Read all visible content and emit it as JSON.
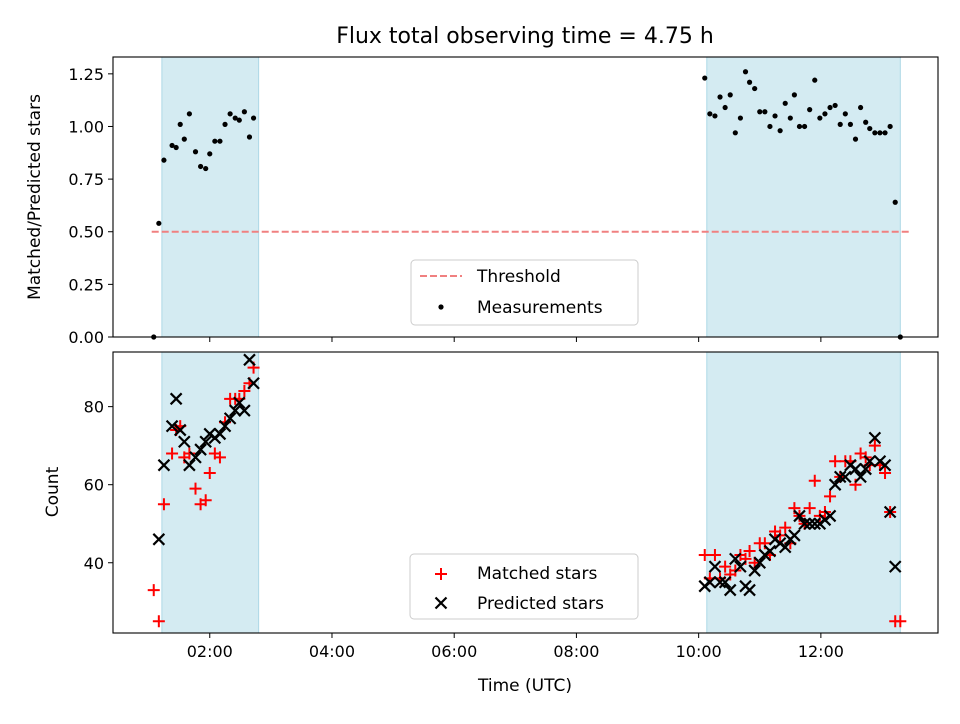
{
  "title": "Flux total observing time = 4.75 h",
  "xlabel": "Time (UTC)",
  "x_ticks": [
    "02:00",
    "04:00",
    "06:00",
    "08:00",
    "10:00",
    "12:00"
  ],
  "colors": {
    "shade": "#add8e6",
    "threshold": "#f08080",
    "measure": "#000000",
    "matched": "#ff0000",
    "predicted": "#000000"
  },
  "chart_data": [
    {
      "type": "scatter",
      "ylabel": "Matched/Predicted stars",
      "ylim": [
        0.0,
        1.33
      ],
      "y_ticks": [
        "0.00",
        "0.25",
        "0.50",
        "0.75",
        "1.00",
        "1.25"
      ],
      "xlim": [
        "00:25",
        "13:55"
      ],
      "shaded_spans": [
        [
          "01:13",
          "02:48"
        ],
        [
          "10:08",
          "13:18"
        ]
      ],
      "threshold": {
        "name": "Threshold",
        "value": 0.5,
        "x_range": [
          "01:03",
          "13:28"
        ]
      },
      "legend": {
        "placement": "lower center",
        "entries": [
          "Threshold",
          "Measurements"
        ]
      },
      "series": [
        {
          "name": "Measurements",
          "points": [
            [
              "01:05",
              0.0
            ],
            [
              "01:10",
              0.54
            ],
            [
              "01:15",
              0.84
            ],
            [
              "01:23",
              0.91
            ],
            [
              "01:27",
              0.9
            ],
            [
              "01:31",
              1.01
            ],
            [
              "01:35",
              0.94
            ],
            [
              "01:40",
              1.06
            ],
            [
              "01:46",
              0.88
            ],
            [
              "01:51",
              0.81
            ],
            [
              "01:56",
              0.8
            ],
            [
              "02:00",
              0.87
            ],
            [
              "02:05",
              0.93
            ],
            [
              "02:10",
              0.93
            ],
            [
              "02:15",
              1.01
            ],
            [
              "02:20",
              1.06
            ],
            [
              "02:25",
              1.04
            ],
            [
              "02:29",
              1.03
            ],
            [
              "02:34",
              1.07
            ],
            [
              "02:39",
              0.95
            ],
            [
              "02:43",
              1.04
            ],
            [
              "10:06",
              1.23
            ],
            [
              "10:11",
              1.06
            ],
            [
              "10:16",
              1.05
            ],
            [
              "10:21",
              1.14
            ],
            [
              "10:26",
              1.09
            ],
            [
              "10:31",
              1.15
            ],
            [
              "10:36",
              0.97
            ],
            [
              "10:41",
              1.04
            ],
            [
              "10:46",
              1.26
            ],
            [
              "10:50",
              1.21
            ],
            [
              "10:55",
              1.18
            ],
            [
              "11:00",
              1.07
            ],
            [
              "11:05",
              1.07
            ],
            [
              "11:10",
              1.0
            ],
            [
              "11:15",
              1.05
            ],
            [
              "11:20",
              0.98
            ],
            [
              "11:25",
              1.11
            ],
            [
              "11:30",
              1.04
            ],
            [
              "11:34",
              1.15
            ],
            [
              "11:39",
              1.0
            ],
            [
              "11:44",
              1.0
            ],
            [
              "11:49",
              1.08
            ],
            [
              "11:54",
              1.22
            ],
            [
              "11:59",
              1.04
            ],
            [
              "12:04",
              1.06
            ],
            [
              "12:09",
              1.09
            ],
            [
              "12:14",
              1.1
            ],
            [
              "12:19",
              1.01
            ],
            [
              "12:24",
              1.06
            ],
            [
              "12:29",
              1.01
            ],
            [
              "12:34",
              0.94
            ],
            [
              "12:39",
              1.09
            ],
            [
              "12:44",
              1.02
            ],
            [
              "12:48",
              0.99
            ],
            [
              "12:53",
              0.97
            ],
            [
              "12:58",
              0.97
            ],
            [
              "13:03",
              0.97
            ],
            [
              "13:08",
              1.0
            ],
            [
              "13:13",
              0.64
            ],
            [
              "13:18",
              0.0
            ]
          ]
        }
      ]
    },
    {
      "type": "scatter",
      "ylabel": "Count",
      "ylim": [
        22,
        94
      ],
      "y_ticks": [
        "40",
        "60",
        "80"
      ],
      "xlim": [
        "00:25",
        "13:55"
      ],
      "shaded_spans": [
        [
          "01:13",
          "02:48"
        ],
        [
          "10:08",
          "13:18"
        ]
      ],
      "legend": {
        "placement": "lower center",
        "entries": [
          "Matched stars",
          "Predicted stars"
        ]
      },
      "series": [
        {
          "name": "Matched stars",
          "points": [
            [
              "01:05",
              33
            ],
            [
              "01:10",
              25
            ],
            [
              "01:15",
              55
            ],
            [
              "01:23",
              68
            ],
            [
              "01:27",
              74
            ],
            [
              "01:31",
              75
            ],
            [
              "01:35",
              67
            ],
            [
              "01:40",
              68
            ],
            [
              "01:46",
              59
            ],
            [
              "01:51",
              55
            ],
            [
              "01:56",
              56
            ],
            [
              "02:00",
              63
            ],
            [
              "02:05",
              68
            ],
            [
              "02:10",
              67
            ],
            [
              "02:15",
              76
            ],
            [
              "02:20",
              82
            ],
            [
              "02:25",
              82
            ],
            [
              "02:29",
              82
            ],
            [
              "02:34",
              84
            ],
            [
              "02:39",
              86
            ],
            [
              "02:43",
              90
            ],
            [
              "10:06",
              42
            ],
            [
              "10:11",
              36
            ],
            [
              "10:16",
              42
            ],
            [
              "10:21",
              36
            ],
            [
              "10:26",
              39
            ],
            [
              "10:31",
              37
            ],
            [
              "10:36",
              38
            ],
            [
              "10:41",
              42
            ],
            [
              "10:46",
              41
            ],
            [
              "10:50",
              43
            ],
            [
              "10:55",
              40
            ],
            [
              "11:00",
              45
            ],
            [
              "11:05",
              45
            ],
            [
              "11:10",
              42
            ],
            [
              "11:15",
              48
            ],
            [
              "11:20",
              47
            ],
            [
              "11:25",
              49
            ],
            [
              "11:30",
              45
            ],
            [
              "11:34",
              54
            ],
            [
              "11:39",
              52
            ],
            [
              "11:44",
              50
            ],
            [
              "11:49",
              54
            ],
            [
              "11:54",
              61
            ],
            [
              "11:59",
              52
            ],
            [
              "12:04",
              53
            ],
            [
              "12:09",
              57
            ],
            [
              "12:14",
              66
            ],
            [
              "12:19",
              62
            ],
            [
              "12:24",
              66
            ],
            [
              "12:29",
              66
            ],
            [
              "12:34",
              60
            ],
            [
              "12:39",
              68
            ],
            [
              "12:44",
              67
            ],
            [
              "12:48",
              65
            ],
            [
              "12:53",
              70
            ],
            [
              "12:58",
              65
            ],
            [
              "13:03",
              63
            ],
            [
              "13:08",
              53
            ],
            [
              "13:13",
              25
            ],
            [
              "13:18",
              25
            ]
          ]
        },
        {
          "name": "Predicted stars",
          "points": [
            [
              "01:10",
              46
            ],
            [
              "01:15",
              65
            ],
            [
              "01:23",
              75
            ],
            [
              "01:27",
              82
            ],
            [
              "01:31",
              74
            ],
            [
              "01:35",
              71
            ],
            [
              "01:40",
              65
            ],
            [
              "01:46",
              67
            ],
            [
              "01:51",
              69
            ],
            [
              "01:56",
              71
            ],
            [
              "02:00",
              73
            ],
            [
              "02:05",
              72
            ],
            [
              "02:10",
              73
            ],
            [
              "02:15",
              75
            ],
            [
              "02:20",
              77
            ],
            [
              "02:25",
              79
            ],
            [
              "02:29",
              81
            ],
            [
              "02:34",
              79
            ],
            [
              "02:39",
              92
            ],
            [
              "02:43",
              86
            ],
            [
              "10:06",
              34
            ],
            [
              "10:11",
              35
            ],
            [
              "10:16",
              39
            ],
            [
              "10:21",
              35
            ],
            [
              "10:26",
              35
            ],
            [
              "10:31",
              33
            ],
            [
              "10:36",
              41
            ],
            [
              "10:41",
              39
            ],
            [
              "10:46",
              34
            ],
            [
              "10:50",
              33
            ],
            [
              "10:55",
              38
            ],
            [
              "11:00",
              40
            ],
            [
              "11:05",
              42
            ],
            [
              "11:10",
              43
            ],
            [
              "11:15",
              46
            ],
            [
              "11:20",
              45
            ],
            [
              "11:25",
              44
            ],
            [
              "11:30",
              46
            ],
            [
              "11:34",
              47
            ],
            [
              "11:39",
              52
            ],
            [
              "11:44",
              50
            ],
            [
              "11:49",
              50
            ],
            [
              "11:54",
              50
            ],
            [
              "11:59",
              50
            ],
            [
              "12:04",
              51
            ],
            [
              "12:09",
              52
            ],
            [
              "12:14",
              60
            ],
            [
              "12:19",
              62
            ],
            [
              "12:24",
              62
            ],
            [
              "12:29",
              65
            ],
            [
              "12:34",
              64
            ],
            [
              "12:39",
              62
            ],
            [
              "12:44",
              64
            ],
            [
              "12:48",
              66
            ],
            [
              "12:53",
              72
            ],
            [
              "12:58",
              66
            ],
            [
              "13:03",
              65
            ],
            [
              "13:08",
              53
            ],
            [
              "13:13",
              39
            ]
          ]
        }
      ]
    }
  ]
}
